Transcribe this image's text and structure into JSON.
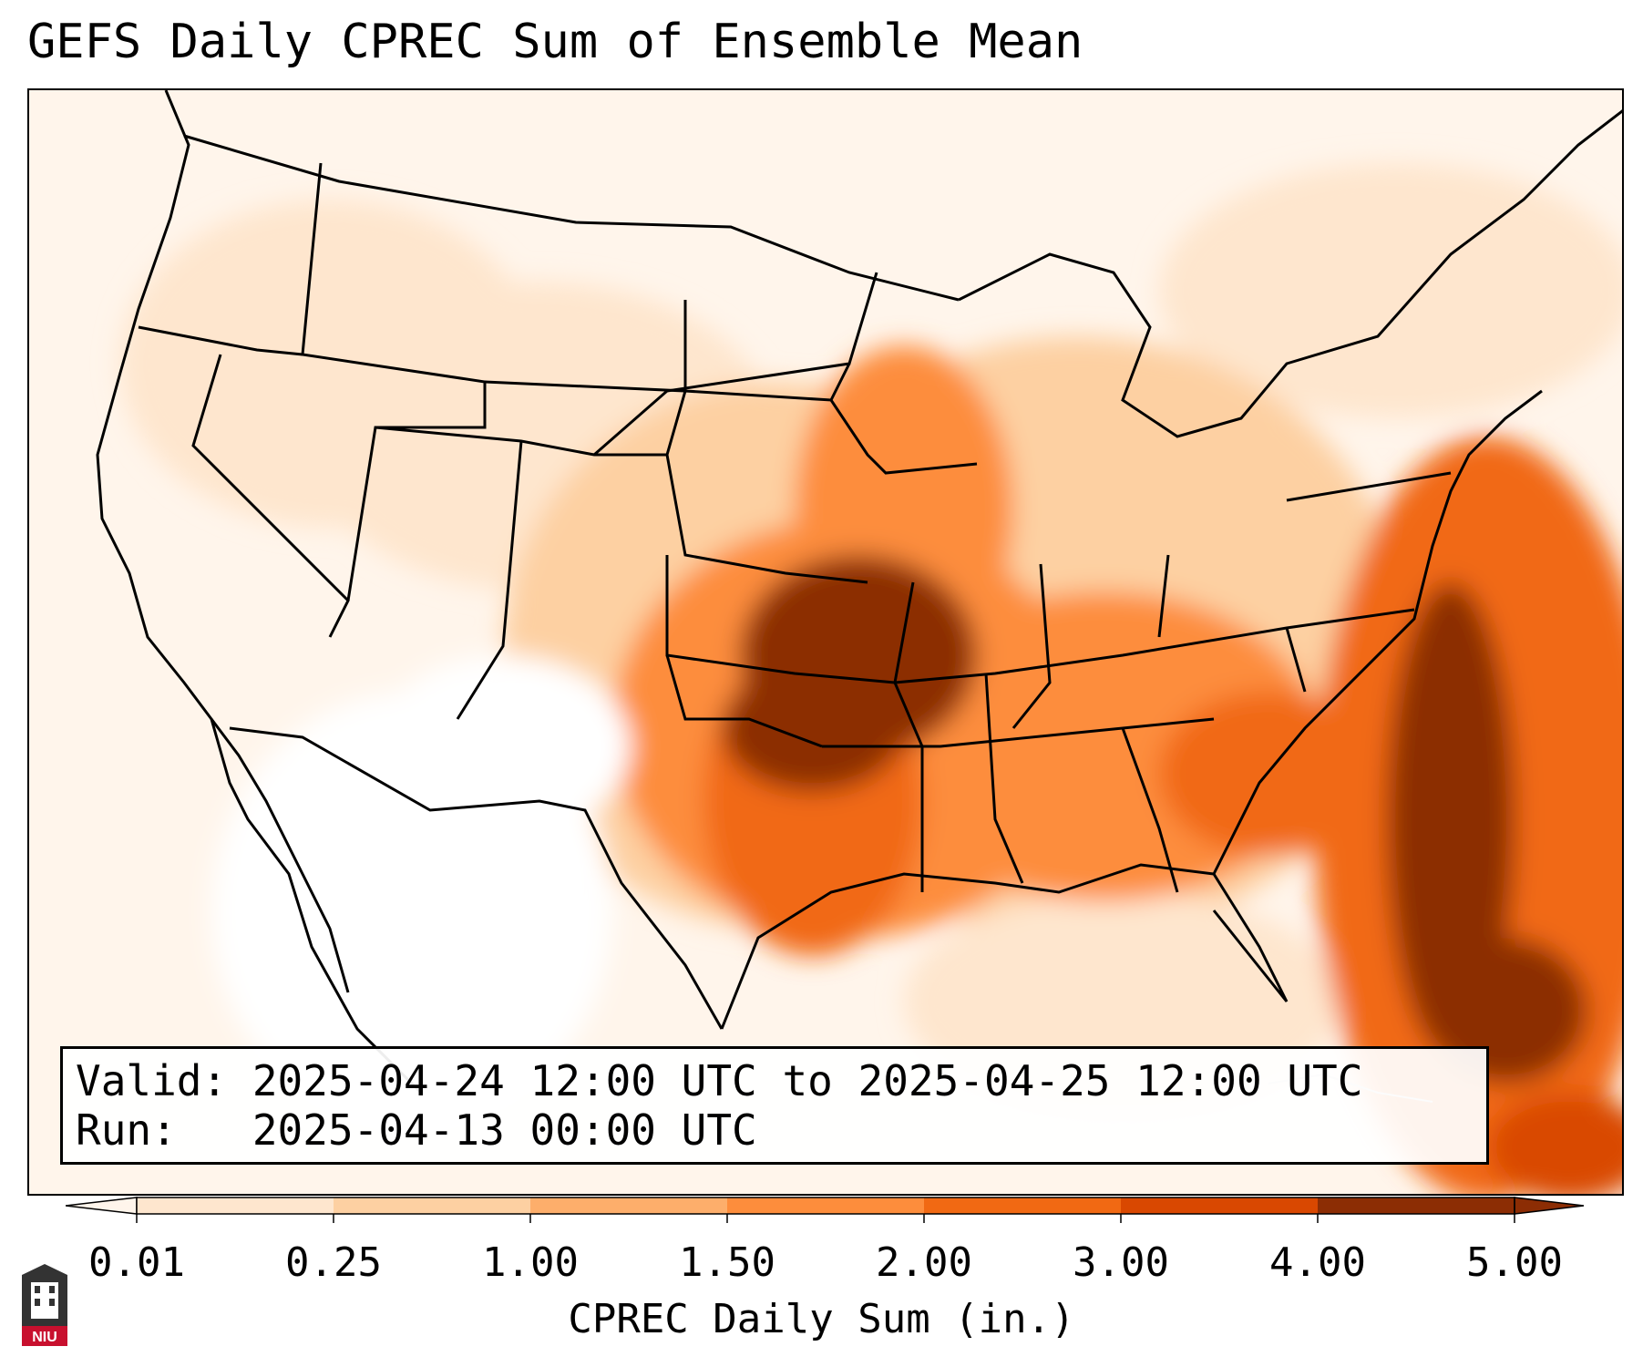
{
  "title": "GEFS Daily CPREC Sum of Ensemble Mean",
  "info": {
    "valid_line": "Valid: 2025-04-24 12:00 UTC to 2025-04-25 12:00 UTC",
    "run_line": "Run:   2025-04-13 00:00 UTC"
  },
  "colorbar": {
    "label": "CPREC Daily Sum (in.)",
    "ticks": [
      "0.01",
      "0.25",
      "1.00",
      "1.50",
      "2.00",
      "3.00",
      "4.00",
      "5.00"
    ],
    "colors": [
      "#fff5eb",
      "#fee6ce",
      "#fdd0a2",
      "#fdae6b",
      "#fd8d3c",
      "#f16913",
      "#d94801",
      "#8c2d04"
    ]
  },
  "logo": {
    "text": "NIU",
    "icon": "university-tower-icon"
  }
}
